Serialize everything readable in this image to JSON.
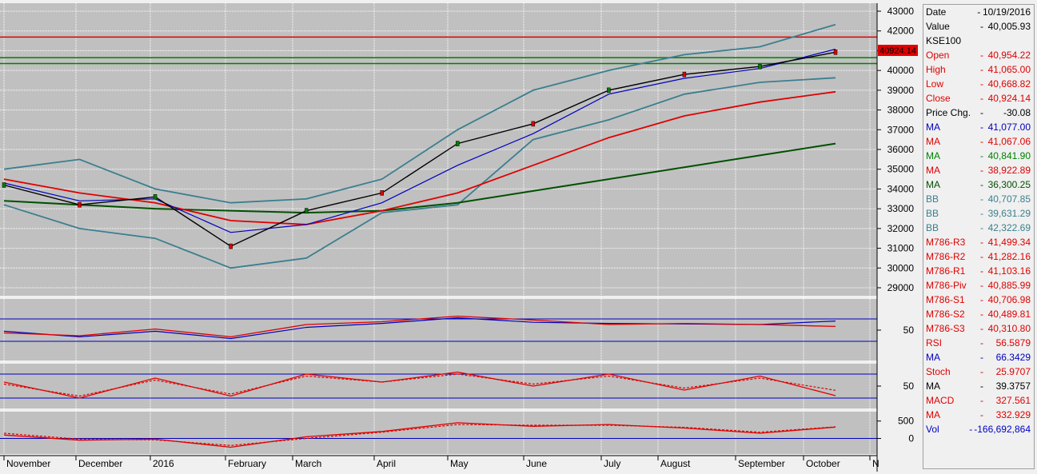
{
  "colors": {
    "background": "#c0c0c0",
    "red": "#e00000",
    "green": "#008000",
    "dark_green": "#005000",
    "blue": "#0000c0",
    "teal": "#3a7f8f"
  },
  "price_axis": {
    "ticks": [
      "43000",
      "42000",
      "41000",
      "40000",
      "39000",
      "38000",
      "37000",
      "36000",
      "35000",
      "34000",
      "33000",
      "32000",
      "31000",
      "30000",
      "29000"
    ]
  },
  "last_price_label": "40924.14",
  "rsi_axis": {
    "ticks": [
      "50"
    ]
  },
  "stoch_axis": {
    "ticks": [
      "50"
    ]
  },
  "macd_axis": {
    "ticks": [
      "500",
      "0"
    ]
  },
  "time_axis": {
    "labels": [
      "November",
      "December",
      "2016",
      "February",
      "March",
      "April",
      "May",
      "June",
      "July",
      "August",
      "September",
      "October",
      "N"
    ]
  },
  "data_window": [
    {
      "label": "Date",
      "dash": "-",
      "value": "10/19/2016",
      "color": "#000000"
    },
    {
      "label": "Value",
      "dash": "-",
      "value": "40,005.93",
      "color": "#000000"
    },
    {
      "label": "KSE100",
      "dash": "",
      "value": "",
      "color": "#000000"
    },
    {
      "label": "Open",
      "dash": "-",
      "value": "40,954.22",
      "color": "#e00000"
    },
    {
      "label": "High",
      "dash": "-",
      "value": "41,065.00",
      "color": "#e00000"
    },
    {
      "label": "Low",
      "dash": "-",
      "value": "40,668.82",
      "color": "#e00000"
    },
    {
      "label": "Close",
      "dash": "-",
      "value": "40,924.14",
      "color": "#e00000"
    },
    {
      "label": "Price Chg.",
      "dash": "-",
      "value": "-30.08",
      "color": "#000000"
    },
    {
      "label": "MA",
      "dash": "-",
      "value": "41,077.00",
      "color": "#0000c0"
    },
    {
      "label": "MA",
      "dash": "-",
      "value": "41,067.06",
      "color": "#e00000"
    },
    {
      "label": "MA",
      "dash": "-",
      "value": "40,841.90",
      "color": "#008000"
    },
    {
      "label": "MA",
      "dash": "-",
      "value": "38,922.89",
      "color": "#e00000"
    },
    {
      "label": "MA",
      "dash": "-",
      "value": "36,300.25",
      "color": "#005000"
    },
    {
      "label": "BB",
      "dash": "-",
      "value": "40,707.85",
      "color": "#3a7f8f"
    },
    {
      "label": "BB",
      "dash": "-",
      "value": "39,631.29",
      "color": "#3a7f8f"
    },
    {
      "label": "BB",
      "dash": "-",
      "value": "42,322.69",
      "color": "#3a7f8f"
    },
    {
      "label": "M786-R3",
      "dash": "-",
      "value": "41,499.34",
      "color": "#e00000"
    },
    {
      "label": "M786-R2",
      "dash": "-",
      "value": "41,282.16",
      "color": "#e00000"
    },
    {
      "label": "M786-R1",
      "dash": "-",
      "value": "41,103.16",
      "color": "#e00000"
    },
    {
      "label": "M786-Piv",
      "dash": "-",
      "value": "40,885.99",
      "color": "#e00000"
    },
    {
      "label": "M786-S1",
      "dash": "-",
      "value": "40,706.98",
      "color": "#e00000"
    },
    {
      "label": "M786-S2",
      "dash": "-",
      "value": "40,489.81",
      "color": "#e00000"
    },
    {
      "label": "M786-S3",
      "dash": "-",
      "value": "40,310.80",
      "color": "#e00000"
    },
    {
      "label": "RSI",
      "dash": "-",
      "value": "56.5879",
      "color": "#e00000"
    },
    {
      "label": "MA",
      "dash": "-",
      "value": "66.3429",
      "color": "#0000c0"
    },
    {
      "label": "Stoch",
      "dash": "-",
      "value": "25.9707",
      "color": "#e00000"
    },
    {
      "label": "MA",
      "dash": "-",
      "value": "39.3757",
      "color": "#000000"
    },
    {
      "label": "MACD",
      "dash": "-",
      "value": "327.561",
      "color": "#e00000"
    },
    {
      "label": "MA",
      "dash": "-",
      "value": "332.929",
      "color": "#e00000"
    },
    {
      "label": "Vol",
      "dash": "-",
      "value": "-166,692,864",
      "color": "#0000c0"
    }
  ],
  "chart_data": {
    "type": "line",
    "x": [
      "2015-11",
      "2015-12",
      "2016-01",
      "2016-02",
      "2016-03",
      "2016-04",
      "2016-05",
      "2016-06",
      "2016-07",
      "2016-08",
      "2016-09",
      "2016-10"
    ],
    "series": [
      {
        "values": [
          34200,
          33200,
          33600,
          31100,
          32900,
          33800,
          36300,
          37300,
          39000,
          39800,
          40200,
          40924
        ]
      },
      {
        "values": [
          34300,
          33400,
          33500,
          31800,
          32200,
          33300,
          35200,
          36800,
          38800,
          39600,
          40100,
          41077
        ]
      },
      {
        "values": [
          34500,
          33800,
          33300,
          32400,
          32200,
          32900,
          33800,
          35200,
          36600,
          37700,
          38400,
          38923
        ]
      },
      {
        "values": [
          33400,
          33200,
          33000,
          32900,
          32800,
          32900,
          33300,
          33900,
          34500,
          35100,
          35700,
          36300
        ]
      }
    ],
    "bb_upper": [
      35000,
      35500,
      34000,
      33300,
      33500,
      34500,
      37000,
      39000,
      40000,
      40800,
      41200,
      42323
    ],
    "bb_lower": [
      33200,
      32000,
      31500,
      30000,
      30500,
      32800,
      33200,
      36500,
      37500,
      38800,
      39400,
      39631
    ],
    "horizontal_levels": [
      41690,
      40650,
      40350
    ],
    "rsi": [
      45,
      40,
      52,
      38,
      60,
      65,
      75,
      68,
      60,
      62,
      60,
      56.59
    ],
    "rsi_ma": [
      48,
      38,
      48,
      35,
      55,
      62,
      72,
      64,
      62,
      61,
      60,
      66.34
    ],
    "rsi_levels": [
      70,
      30
    ],
    "stoch": [
      60,
      20,
      70,
      25,
      80,
      60,
      85,
      50,
      80,
      40,
      75,
      25.97
    ],
    "stoch_ma": [
      55,
      25,
      65,
      30,
      75,
      60,
      80,
      55,
      75,
      45,
      70,
      39.38
    ],
    "stoch_levels": [
      80,
      20
    ],
    "macd": [
      100,
      -50,
      -20,
      -250,
      50,
      200,
      450,
      350,
      400,
      300,
      150,
      327.561
    ],
    "macd_signal": [
      150,
      -20,
      -40,
      -200,
      0,
      180,
      400,
      380,
      380,
      320,
      180,
      332.929
    ],
    "macd_levels": [
      0
    ]
  }
}
